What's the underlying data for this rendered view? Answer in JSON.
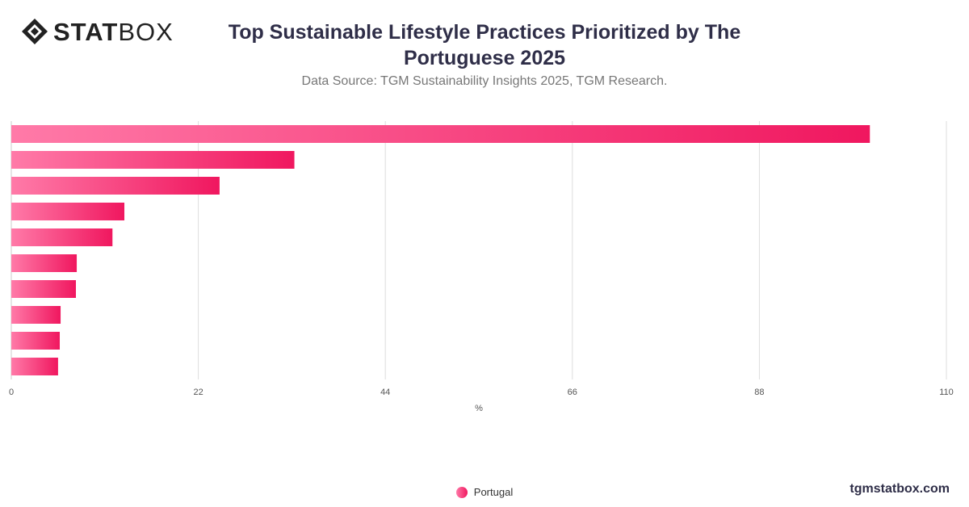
{
  "header": {
    "logo_text_bold": "STAT",
    "logo_text_light": "BOX",
    "title_line1": "Top Sustainable Lifestyle Practices Prioritized by The",
    "title_line2": "Portuguese 2025",
    "subtitle": "Data Source: TGM Sustainability Insights 2025, TGM Research."
  },
  "legend": {
    "label": "Portugal"
  },
  "watermark": "tgmstatbox.com",
  "colors": {
    "bar_start": "#ff7aa8",
    "bar_end": "#f0175f",
    "grid": "#dddddd",
    "title": "#2f2e48"
  },
  "chart_data": {
    "type": "bar",
    "orientation": "horizontal",
    "title": "Top Sustainable Lifestyle Practices Prioritized by The Portuguese 2025",
    "xlabel": "%",
    "ylabel": "",
    "xlim": [
      0,
      110
    ],
    "x_ticks": [
      0,
      22,
      44,
      66,
      88,
      110
    ],
    "grid": "vertical",
    "legend_position": "bottom-center",
    "categories": [
      "",
      "",
      "",
      "",
      "",
      "",
      "",
      "",
      "",
      ""
    ],
    "series": [
      {
        "name": "Portugal",
        "values": [
          101,
          33.3,
          24.5,
          13.3,
          11.9,
          7.7,
          7.6,
          5.8,
          5.7,
          5.5
        ]
      }
    ]
  }
}
